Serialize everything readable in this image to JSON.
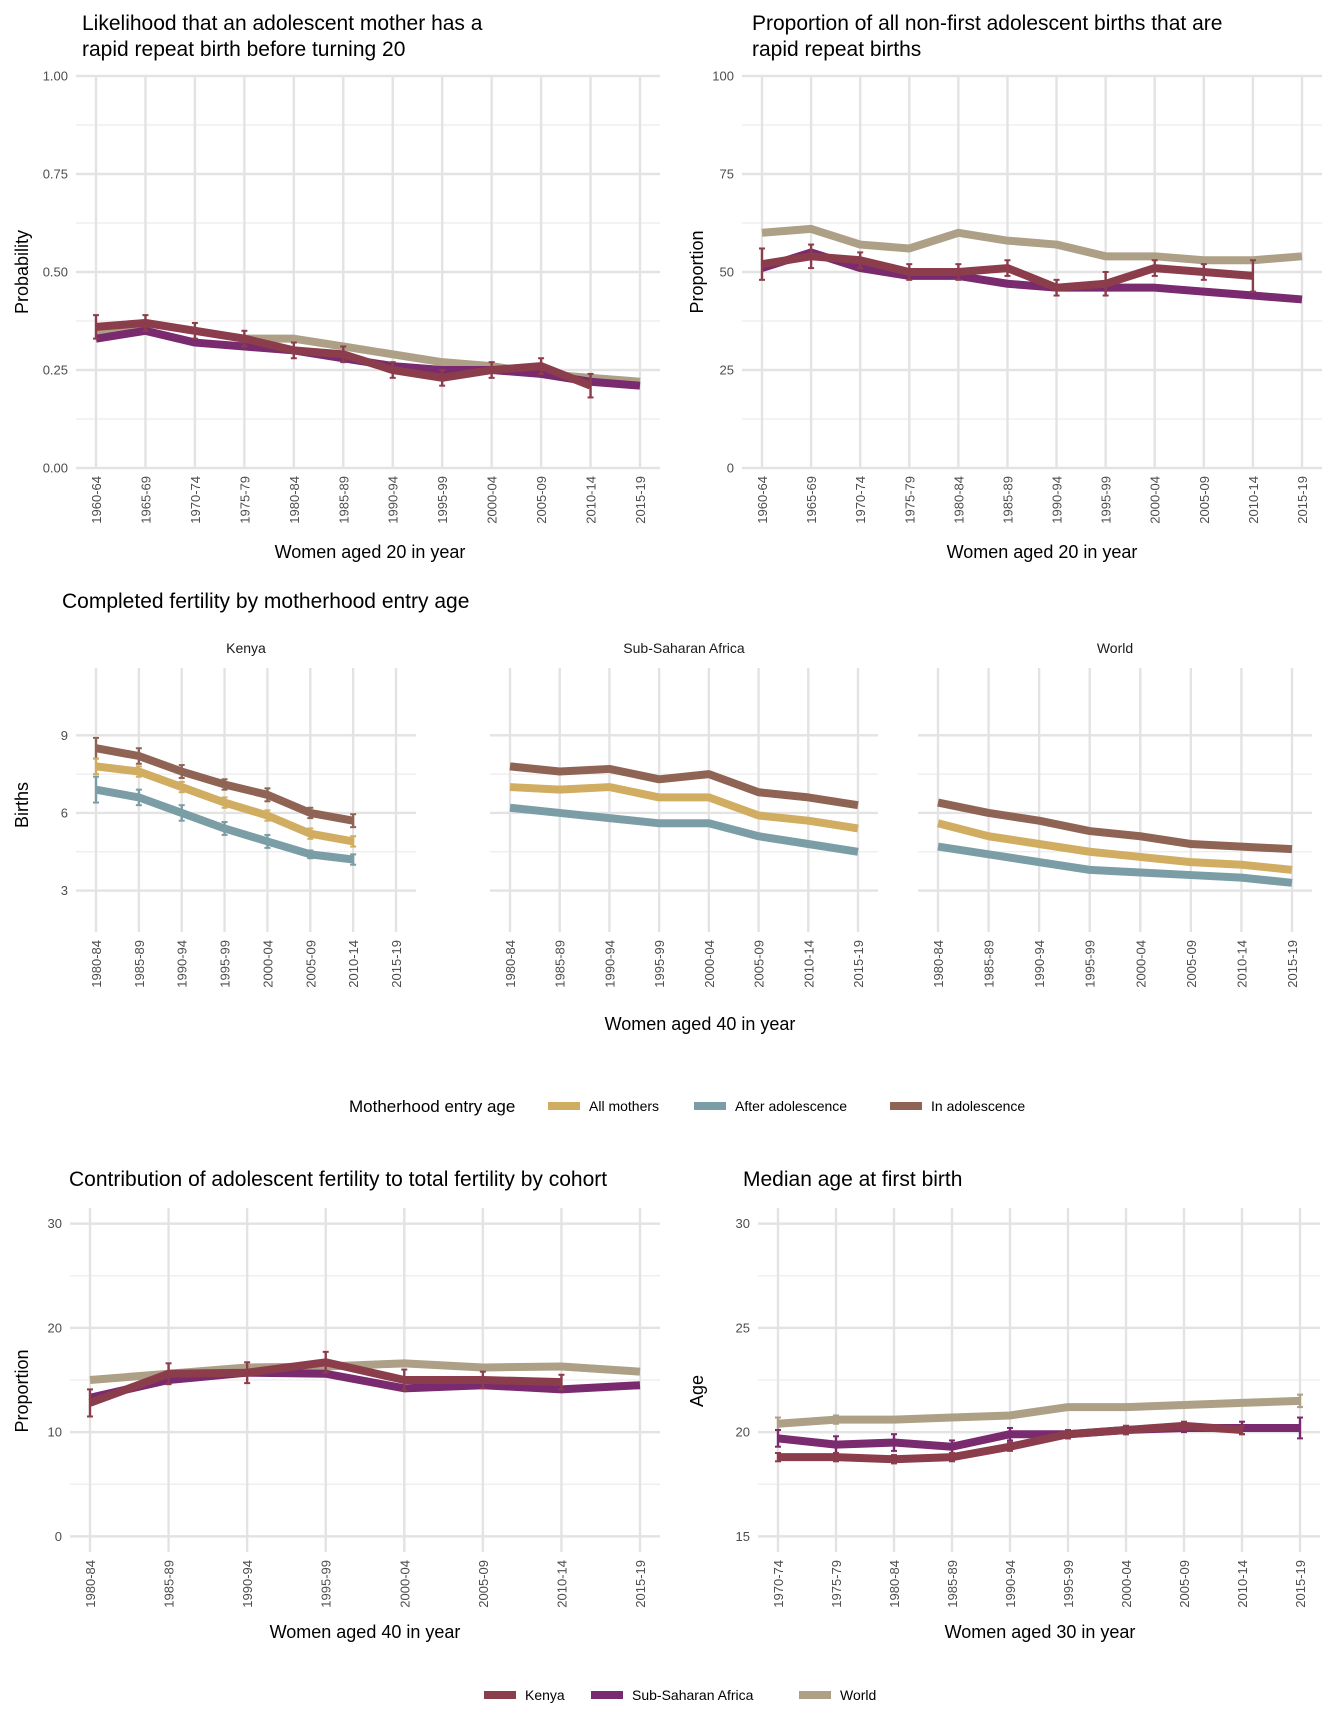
{
  "colors": {
    "kenya": "#8b3d4c",
    "ssa": "#7a2a6e",
    "world": "#ada086",
    "all_mothers": "#d1ad62",
    "after_adolescence": "#7b9ea6",
    "in_adolescence": "#8f6455"
  },
  "legends": {
    "region": {
      "title": "",
      "items": [
        {
          "label": "Kenya",
          "color": "#8b3d4c"
        },
        {
          "label": "Sub-Saharan Africa",
          "color": "#7a2a6e"
        },
        {
          "label": "World",
          "color": "#ada086"
        }
      ]
    },
    "entry": {
      "title": "Motherhood entry age",
      "items": [
        {
          "label": "All mothers",
          "color": "#d1ad62"
        },
        {
          "label": "After adolescence",
          "color": "#7b9ea6"
        },
        {
          "label": "In adolescence",
          "color": "#8f6455"
        }
      ]
    }
  },
  "chart_data": [
    {
      "type": "line",
      "title": "Likelihood that an adolescent mother has a rapid repeat birth before turning 20",
      "title_lines": [
        "Likelihood that an adolescent mother has a",
        "rapid repeat birth before turning 20"
      ],
      "xlabel": "Women aged 20 in year",
      "ylabel": "Probability",
      "ylim": [
        0,
        1
      ],
      "yticks": [
        0,
        0.25,
        0.5,
        0.75,
        1
      ],
      "ytick_labels": [
        "0.00",
        "0.25",
        "0.50",
        "0.75",
        "1.00"
      ],
      "categories": [
        "1960-64",
        "1965-69",
        "1970-74",
        "1975-79",
        "1980-84",
        "1985-89",
        "1990-94",
        "1995-99",
        "2000-04",
        "2005-09",
        "2010-14",
        "2015-19"
      ],
      "series": [
        {
          "name": "World",
          "color": "#ada086",
          "values": [
            0.35,
            0.37,
            0.35,
            0.33,
            0.33,
            0.31,
            0.29,
            0.27,
            0.26,
            0.24,
            0.23,
            0.22
          ]
        },
        {
          "name": "Sub-Saharan Africa",
          "color": "#7a2a6e",
          "values": [
            0.33,
            0.35,
            0.32,
            0.31,
            0.3,
            0.28,
            0.26,
            0.25,
            0.25,
            0.24,
            0.22,
            0.21
          ]
        },
        {
          "name": "Kenya",
          "color": "#8b3d4c",
          "values": [
            0.36,
            0.37,
            0.35,
            0.33,
            0.3,
            0.29,
            0.25,
            0.23,
            0.25,
            0.26,
            0.21,
            null
          ],
          "errors": [
            0.03,
            0.02,
            0.02,
            0.02,
            0.02,
            0.02,
            0.02,
            0.02,
            0.02,
            0.02,
            0.03,
            null
          ]
        }
      ]
    },
    {
      "type": "line",
      "title": "Proportion of all non-first adolescent births that are rapid repeat births",
      "title_lines": [
        "Proportion of all non-first adolescent births that are",
        "rapid repeat births"
      ],
      "xlabel": "Women aged 20 in year",
      "ylabel": "Proportion",
      "ylim": [
        0,
        100
      ],
      "yticks": [
        0,
        25,
        50,
        75,
        100
      ],
      "ytick_labels": [
        "0",
        "25",
        "50",
        "75",
        "100"
      ],
      "categories": [
        "1960-64",
        "1965-69",
        "1970-74",
        "1975-79",
        "1980-84",
        "1985-89",
        "1990-94",
        "1995-99",
        "2000-04",
        "2005-09",
        "2010-14",
        "2015-19"
      ],
      "series": [
        {
          "name": "World",
          "color": "#ada086",
          "values": [
            60,
            61,
            57,
            56,
            60,
            58,
            57,
            54,
            54,
            53,
            53,
            54
          ]
        },
        {
          "name": "Sub-Saharan Africa",
          "color": "#7a2a6e",
          "values": [
            51,
            55,
            51,
            49,
            49,
            47,
            46,
            46,
            46,
            45,
            44,
            43
          ]
        },
        {
          "name": "Kenya",
          "color": "#8b3d4c",
          "values": [
            52,
            54,
            53,
            50,
            50,
            51,
            46,
            47,
            51,
            50,
            49,
            null
          ],
          "errors": [
            4,
            3,
            2,
            2,
            2,
            2,
            2,
            3,
            2,
            2,
            4,
            null
          ]
        }
      ]
    },
    {
      "type": "line",
      "title": "Completed fertility by motherhood entry age",
      "xlabel": "Women aged 40 in year",
      "ylabel": "Births",
      "ylim": [
        1.4,
        11.6
      ],
      "yticks": [
        3,
        6,
        9
      ],
      "ytick_labels": [
        "3",
        "6",
        "9"
      ],
      "categories": [
        "1980-84",
        "1985-89",
        "1990-94",
        "1995-99",
        "2000-04",
        "2005-09",
        "2010-14",
        "2015-19"
      ],
      "facets": [
        {
          "name": "Kenya",
          "series": [
            {
              "name": "In adolescence",
              "color": "#8f6455",
              "values": [
                8.5,
                8.2,
                7.6,
                7.1,
                6.7,
                6.0,
                5.7,
                null
              ],
              "errors": [
                0.4,
                0.3,
                0.25,
                0.2,
                0.25,
                0.2,
                0.25,
                null
              ]
            },
            {
              "name": "All mothers",
              "color": "#d1ad62",
              "values": [
                7.8,
                7.6,
                7.0,
                6.4,
                5.9,
                5.2,
                4.9,
                null
              ],
              "errors": [
                0.3,
                0.2,
                0.2,
                0.2,
                0.2,
                0.2,
                0.2,
                null
              ]
            },
            {
              "name": "After adolescence",
              "color": "#7b9ea6",
              "values": [
                6.9,
                6.6,
                6.0,
                5.4,
                4.9,
                4.4,
                4.2,
                null
              ],
              "errors": [
                0.5,
                0.3,
                0.3,
                0.25,
                0.25,
                0.15,
                0.2,
                null
              ]
            }
          ]
        },
        {
          "name": "Sub-Saharan Africa",
          "series": [
            {
              "name": "In adolescence",
              "color": "#8f6455",
              "values": [
                7.8,
                7.6,
                7.7,
                7.3,
                7.5,
                6.8,
                6.6,
                6.3
              ]
            },
            {
              "name": "All mothers",
              "color": "#d1ad62",
              "values": [
                7.0,
                6.9,
                7.0,
                6.6,
                6.6,
                5.9,
                5.7,
                5.4
              ]
            },
            {
              "name": "After adolescence",
              "color": "#7b9ea6",
              "values": [
                6.2,
                6.0,
                5.8,
                5.6,
                5.6,
                5.1,
                4.8,
                4.5
              ]
            }
          ]
        },
        {
          "name": "World",
          "series": [
            {
              "name": "In adolescence",
              "color": "#8f6455",
              "values": [
                6.4,
                6.0,
                5.7,
                5.3,
                5.1,
                4.8,
                4.7,
                4.6
              ]
            },
            {
              "name": "All mothers",
              "color": "#d1ad62",
              "values": [
                5.6,
                5.1,
                4.8,
                4.5,
                4.3,
                4.1,
                4.0,
                3.8
              ]
            },
            {
              "name": "After adolescence",
              "color": "#7b9ea6",
              "values": [
                4.7,
                4.4,
                4.1,
                3.8,
                3.7,
                3.6,
                3.5,
                3.3
              ]
            }
          ]
        }
      ]
    },
    {
      "type": "line",
      "title": "Contribution of adolescent fertility to total fertility by cohort",
      "xlabel": "Women aged 40 in year",
      "ylabel": "Proportion",
      "ylim": [
        -1.5,
        31.5
      ],
      "yticks": [
        0,
        10,
        20,
        30
      ],
      "ytick_labels": [
        "0",
        "10",
        "20",
        "30"
      ],
      "categories": [
        "1980-84",
        "1985-89",
        "1990-94",
        "1995-99",
        "2000-04",
        "2005-09",
        "2010-14",
        "2015-19"
      ],
      "series": [
        {
          "name": "World",
          "color": "#ada086",
          "values": [
            15.0,
            15.6,
            16.2,
            16.3,
            16.6,
            16.2,
            16.3,
            15.8
          ]
        },
        {
          "name": "Sub-Saharan Africa",
          "color": "#7a2a6e",
          "values": [
            13.3,
            15.0,
            15.7,
            15.6,
            14.2,
            14.5,
            14.1,
            14.5
          ]
        },
        {
          "name": "Kenya",
          "color": "#8b3d4c",
          "values": [
            12.8,
            15.6,
            15.7,
            16.7,
            15.0,
            15.0,
            14.8,
            null
          ],
          "errors": [
            1.3,
            1.0,
            1.0,
            1.0,
            1.0,
            0.8,
            0.7,
            null
          ]
        }
      ]
    },
    {
      "type": "line",
      "title": "Median age at first birth",
      "xlabel": "Women aged 30 in year",
      "ylabel": "Age",
      "ylim": [
        14.25,
        30.75
      ],
      "yticks": [
        15,
        20,
        25,
        30
      ],
      "ytick_labels": [
        "15",
        "20",
        "25",
        "30"
      ],
      "categories": [
        "1970-74",
        "1975-79",
        "1980-84",
        "1985-89",
        "1990-94",
        "1995-99",
        "2000-04",
        "2005-09",
        "2010-14",
        "2015-19"
      ],
      "series": [
        {
          "name": "World",
          "color": "#ada086",
          "values": [
            20.4,
            20.6,
            20.6,
            20.7,
            20.8,
            21.2,
            21.2,
            21.3,
            21.4,
            21.5
          ],
          "errors": [
            0.3,
            0.2,
            0.1,
            0.1,
            0.1,
            0.1,
            0.1,
            0.1,
            0.1,
            0.3
          ]
        },
        {
          "name": "Sub-Saharan Africa",
          "color": "#7a2a6e",
          "values": [
            19.7,
            19.4,
            19.5,
            19.3,
            19.9,
            19.9,
            20.1,
            20.2,
            20.2,
            20.2
          ],
          "errors": [
            0.4,
            0.4,
            0.4,
            0.3,
            0.3,
            0.2,
            0.2,
            0.2,
            0.3,
            0.5
          ]
        },
        {
          "name": "Kenya",
          "color": "#8b3d4c",
          "values": [
            18.8,
            18.8,
            18.7,
            18.8,
            19.3,
            19.9,
            20.1,
            20.3,
            20.1,
            null
          ],
          "errors": [
            0.2,
            0.2,
            0.2,
            0.2,
            0.2,
            0.2,
            0.2,
            0.2,
            0.2,
            null
          ]
        }
      ]
    }
  ]
}
